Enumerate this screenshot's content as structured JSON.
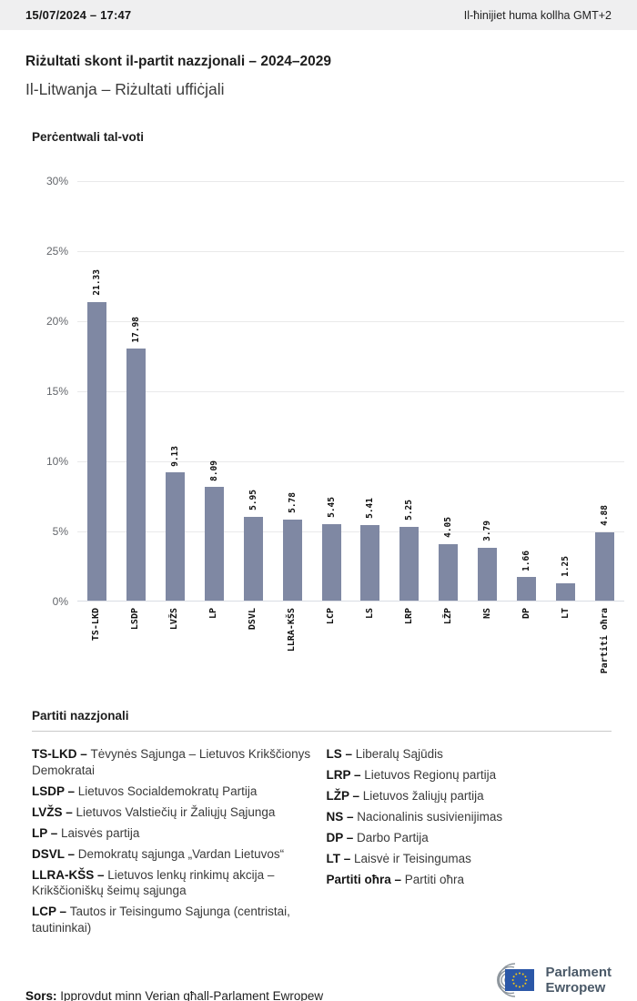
{
  "header": {
    "datetime": "15/07/2024 – 17:47",
    "timezone_note": "Il-ħinijiet huma kollha GMT+2"
  },
  "page": {
    "title": "Riżultati skont il-partit nazzjonali – 2024–2029",
    "subtitle": "Il-Litwanja – Riżultati uffiċjali"
  },
  "chart_data": {
    "type": "bar",
    "title": "Perċentwali tal-voti",
    "categories": [
      "TS-LKD",
      "LSDP",
      "LVŽS",
      "LP",
      "DSVL",
      "LLRA-KŠS",
      "LCP",
      "LS",
      "LRP",
      "LŽP",
      "NS",
      "DP",
      "LT",
      "Partiti oħra"
    ],
    "values": [
      21.33,
      17.98,
      9.13,
      8.09,
      5.95,
      5.78,
      5.45,
      5.41,
      5.25,
      4.05,
      3.79,
      1.66,
      1.25,
      4.88
    ],
    "value_labels": [
      "21.33",
      "17.98",
      "9.13",
      "8.09",
      "5.95",
      "5.78",
      "5.45",
      "5.41",
      "5.25",
      "4.05",
      "3.79",
      "1.66",
      "1.25",
      "4.88"
    ],
    "ylim": [
      0,
      30
    ],
    "yticks": [
      30,
      25,
      20,
      15,
      10,
      5,
      0
    ],
    "ytick_labels": [
      "30%",
      "25%",
      "20%",
      "15%",
      "10%",
      "5%",
      "0%"
    ],
    "grid": true,
    "bar_color": "#7f88a3",
    "legend_position": "none"
  },
  "legend": {
    "title": "Partiti nazzjonali",
    "columns": [
      [
        {
          "abbr": "TS-LKD",
          "name": "Tėvynės Sąjunga – Lietuvos Krikščionys Demokratai"
        },
        {
          "abbr": "LSDP",
          "name": "Lietuvos Socialdemokratų Partija"
        },
        {
          "abbr": "LVŽS",
          "name": "Lietuvos Valstiečių ir Žaliųjų Sąjunga"
        },
        {
          "abbr": "LP",
          "name": "Laisvės partija"
        },
        {
          "abbr": "DSVL",
          "name": "Demokratų sąjunga „Vardan Lietuvos“"
        },
        {
          "abbr": "LLRA-KŠS",
          "name": "Lietuvos lenkų rinkimų akcija – Krikščioniškų šeimų sąjunga"
        },
        {
          "abbr": "LCP",
          "name": "Tautos ir Teisingumo Sąjunga (centristai, tautininkai)"
        }
      ],
      [
        {
          "abbr": "LS",
          "name": "Liberalų Sąjūdis"
        },
        {
          "abbr": "LRP",
          "name": "Lietuvos Regionų partija"
        },
        {
          "abbr": "LŽP",
          "name": "Lietuvos žaliųjų partija"
        },
        {
          "abbr": "NS",
          "name": "Nacionalinis susivienijimas"
        },
        {
          "abbr": "DP",
          "name": "Darbo Partija"
        },
        {
          "abbr": "LT",
          "name": "Laisvė ir Teisingumas"
        },
        {
          "abbr": "Partiti oħra",
          "name": "Partiti oħra"
        }
      ]
    ]
  },
  "footer": {
    "source_label": "Sors:",
    "source_text": "Ipprovdut minn Verian għall-Parlament Ewropew",
    "logo_line1": "Parlament",
    "logo_line2": "Ewropew"
  },
  "colors": {
    "bar": "#7f88a3",
    "eu_flag_blue": "#2b57a7",
    "star_yellow": "#f8c80f",
    "logo_gray": "#8e969d",
    "logo_text": "#4a5968"
  }
}
